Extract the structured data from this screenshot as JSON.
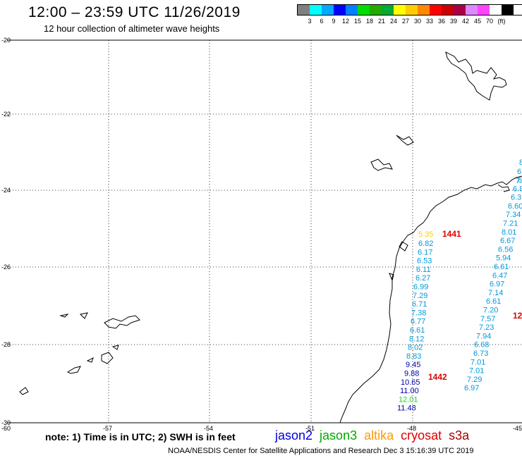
{
  "header": {
    "title": "12:00 – 23:59 UTC 11/26/2019",
    "subtitle": "12 hour collection of altimeter wave heights"
  },
  "legend": {
    "colors": [
      "#808080",
      "#00ffff",
      "#00aaff",
      "#0000ff",
      "#0080ff",
      "#00dd00",
      "#22aa00",
      "#00aa33",
      "#ffff00",
      "#ffcc00",
      "#ff8800",
      "#ff0000",
      "#cc0000",
      "#aa0044",
      "#dd88ff",
      "#ff44ff",
      "#ffffff",
      "#000000"
    ],
    "labels": [
      "3",
      "6",
      "9",
      "12",
      "15",
      "18",
      "21",
      "24",
      "27",
      "30",
      "33",
      "36",
      "39",
      "42",
      "45",
      "70",
      "(ft)"
    ]
  },
  "axes": {
    "lat_labels": [
      "-20",
      "-22",
      "-24",
      "-26",
      "-28",
      "-30"
    ],
    "lon_labels": [
      "-60",
      "-57",
      "-54",
      "-51",
      "-48",
      "-45"
    ]
  },
  "passes": [
    {
      "id": "1441",
      "values": [
        "5.35"
      ],
      "colors": [
        "#ffcc00"
      ]
    },
    {
      "id": "1442",
      "values": []
    },
    {
      "id": "12",
      "values": []
    }
  ],
  "track_a": {
    "values": [
      "6.82",
      "6.17",
      "6.53",
      "6.11",
      "6.27",
      "6.99",
      "7.29",
      "6.71",
      "7.38",
      "6.77",
      "6.61",
      "8.12",
      "8.02",
      "8.83",
      "9.45",
      "9.88",
      "10.65",
      "11.00",
      "12.01",
      "11.48"
    ],
    "colors": [
      "#0099dd",
      "#0099dd",
      "#0099dd",
      "#0099dd",
      "#0099dd",
      "#0099dd",
      "#0099dd",
      "#0099dd",
      "#0099dd",
      "#0099dd",
      "#0099dd",
      "#0099dd",
      "#0099dd",
      "#0099dd",
      "#0000aa",
      "#0000aa",
      "#0000aa",
      "#0000aa",
      "#22cc22",
      "#0000aa"
    ]
  },
  "track_b": {
    "values": [
      "6.",
      "6.8",
      "6.3",
      "6.60",
      "7.34",
      "7.21",
      "8.01",
      "6.67",
      "6.56",
      "5.94",
      "6.61",
      "6.47",
      "6.97",
      "7.14",
      "6.61",
      "7.20",
      "7.57",
      "7.23",
      "7.94",
      "6.68",
      "6.73",
      "7.01",
      "7.01",
      "7.29",
      "6.97"
    ],
    "top_partial": [
      "8",
      "6",
      "7."
    ]
  },
  "footer": {
    "note": "note: 1) Time is in UTC; 2) SWH is in feet",
    "satellites": [
      {
        "name": "jason2",
        "color": "#0000dd"
      },
      {
        "name": "jason3",
        "color": "#00aa00"
      },
      {
        "name": "altika",
        "color": "#ff9900"
      },
      {
        "name": "cryosat",
        "color": "#dd0000"
      },
      {
        "name": "s3a",
        "color": "#aa0000"
      }
    ],
    "credit": "NOAA/NESDIS Center for Satellite Applications and Research   Dec  3 15:16:39 UTC 2019"
  }
}
